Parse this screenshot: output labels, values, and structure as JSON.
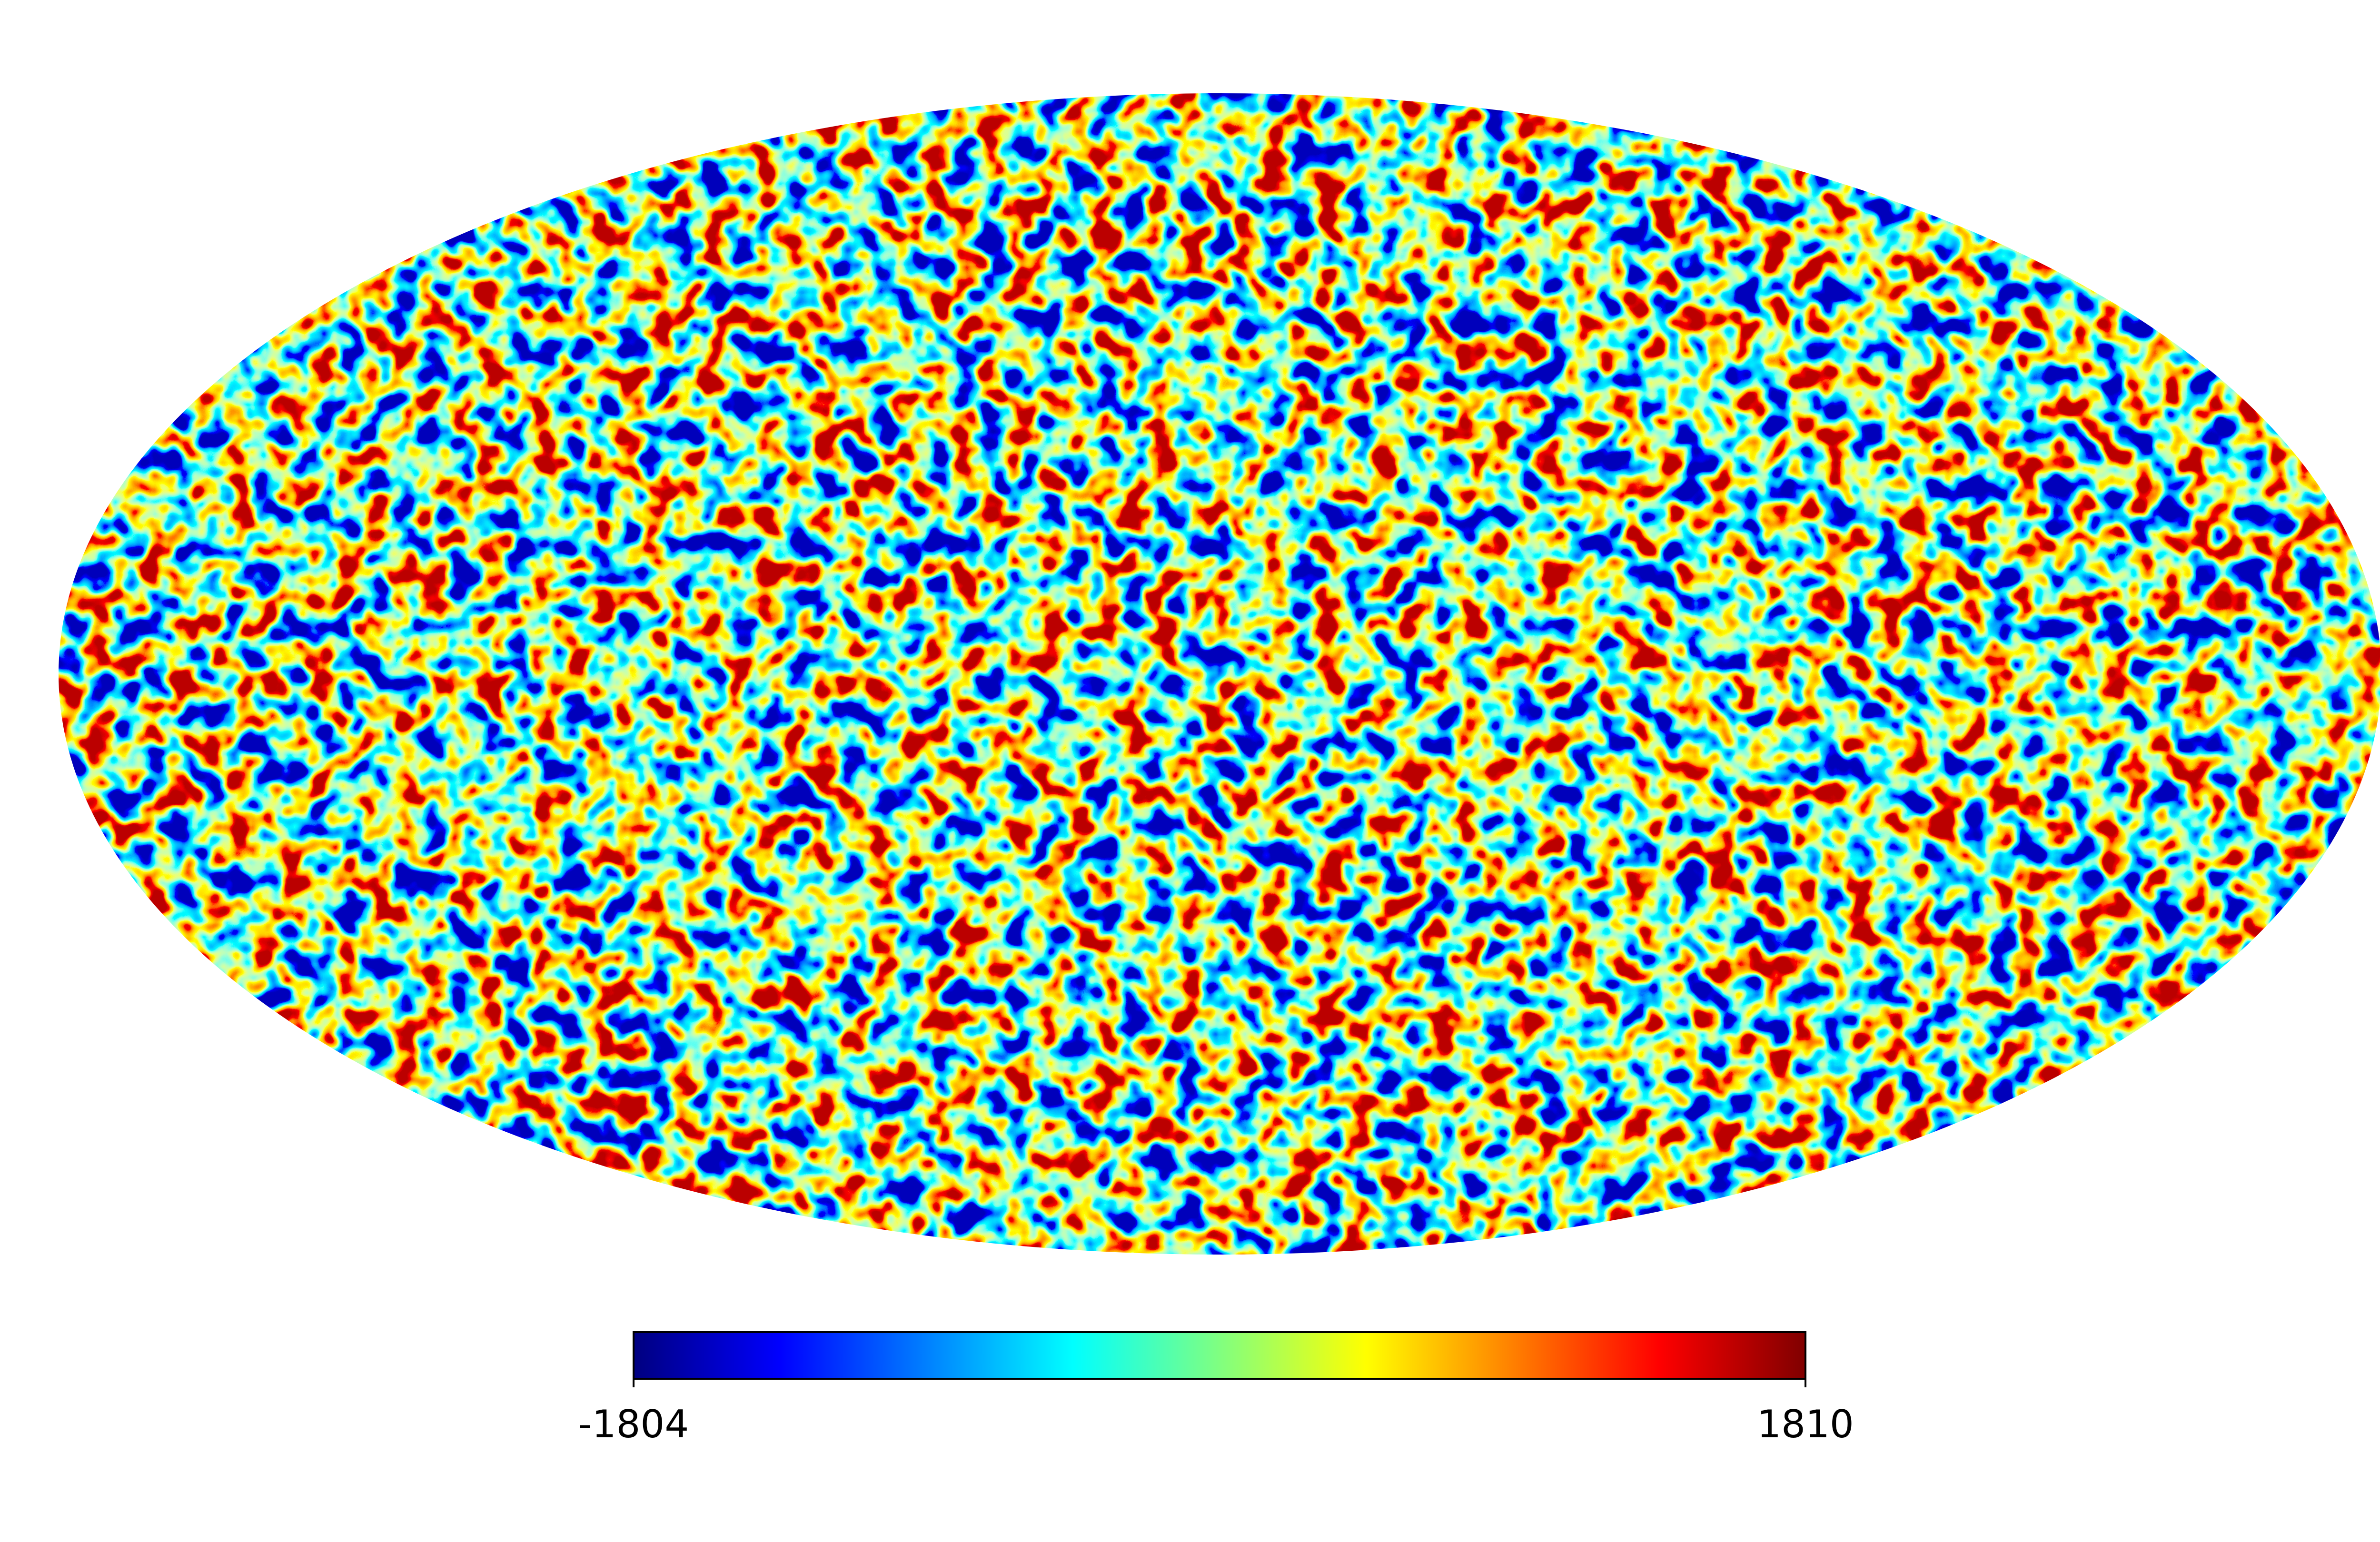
{
  "chart_data": {
    "type": "mollweide",
    "colormap": "jet",
    "clim": [
      -1804,
      1810
    ],
    "cticks": [
      -1804,
      1810
    ]
  }
}
